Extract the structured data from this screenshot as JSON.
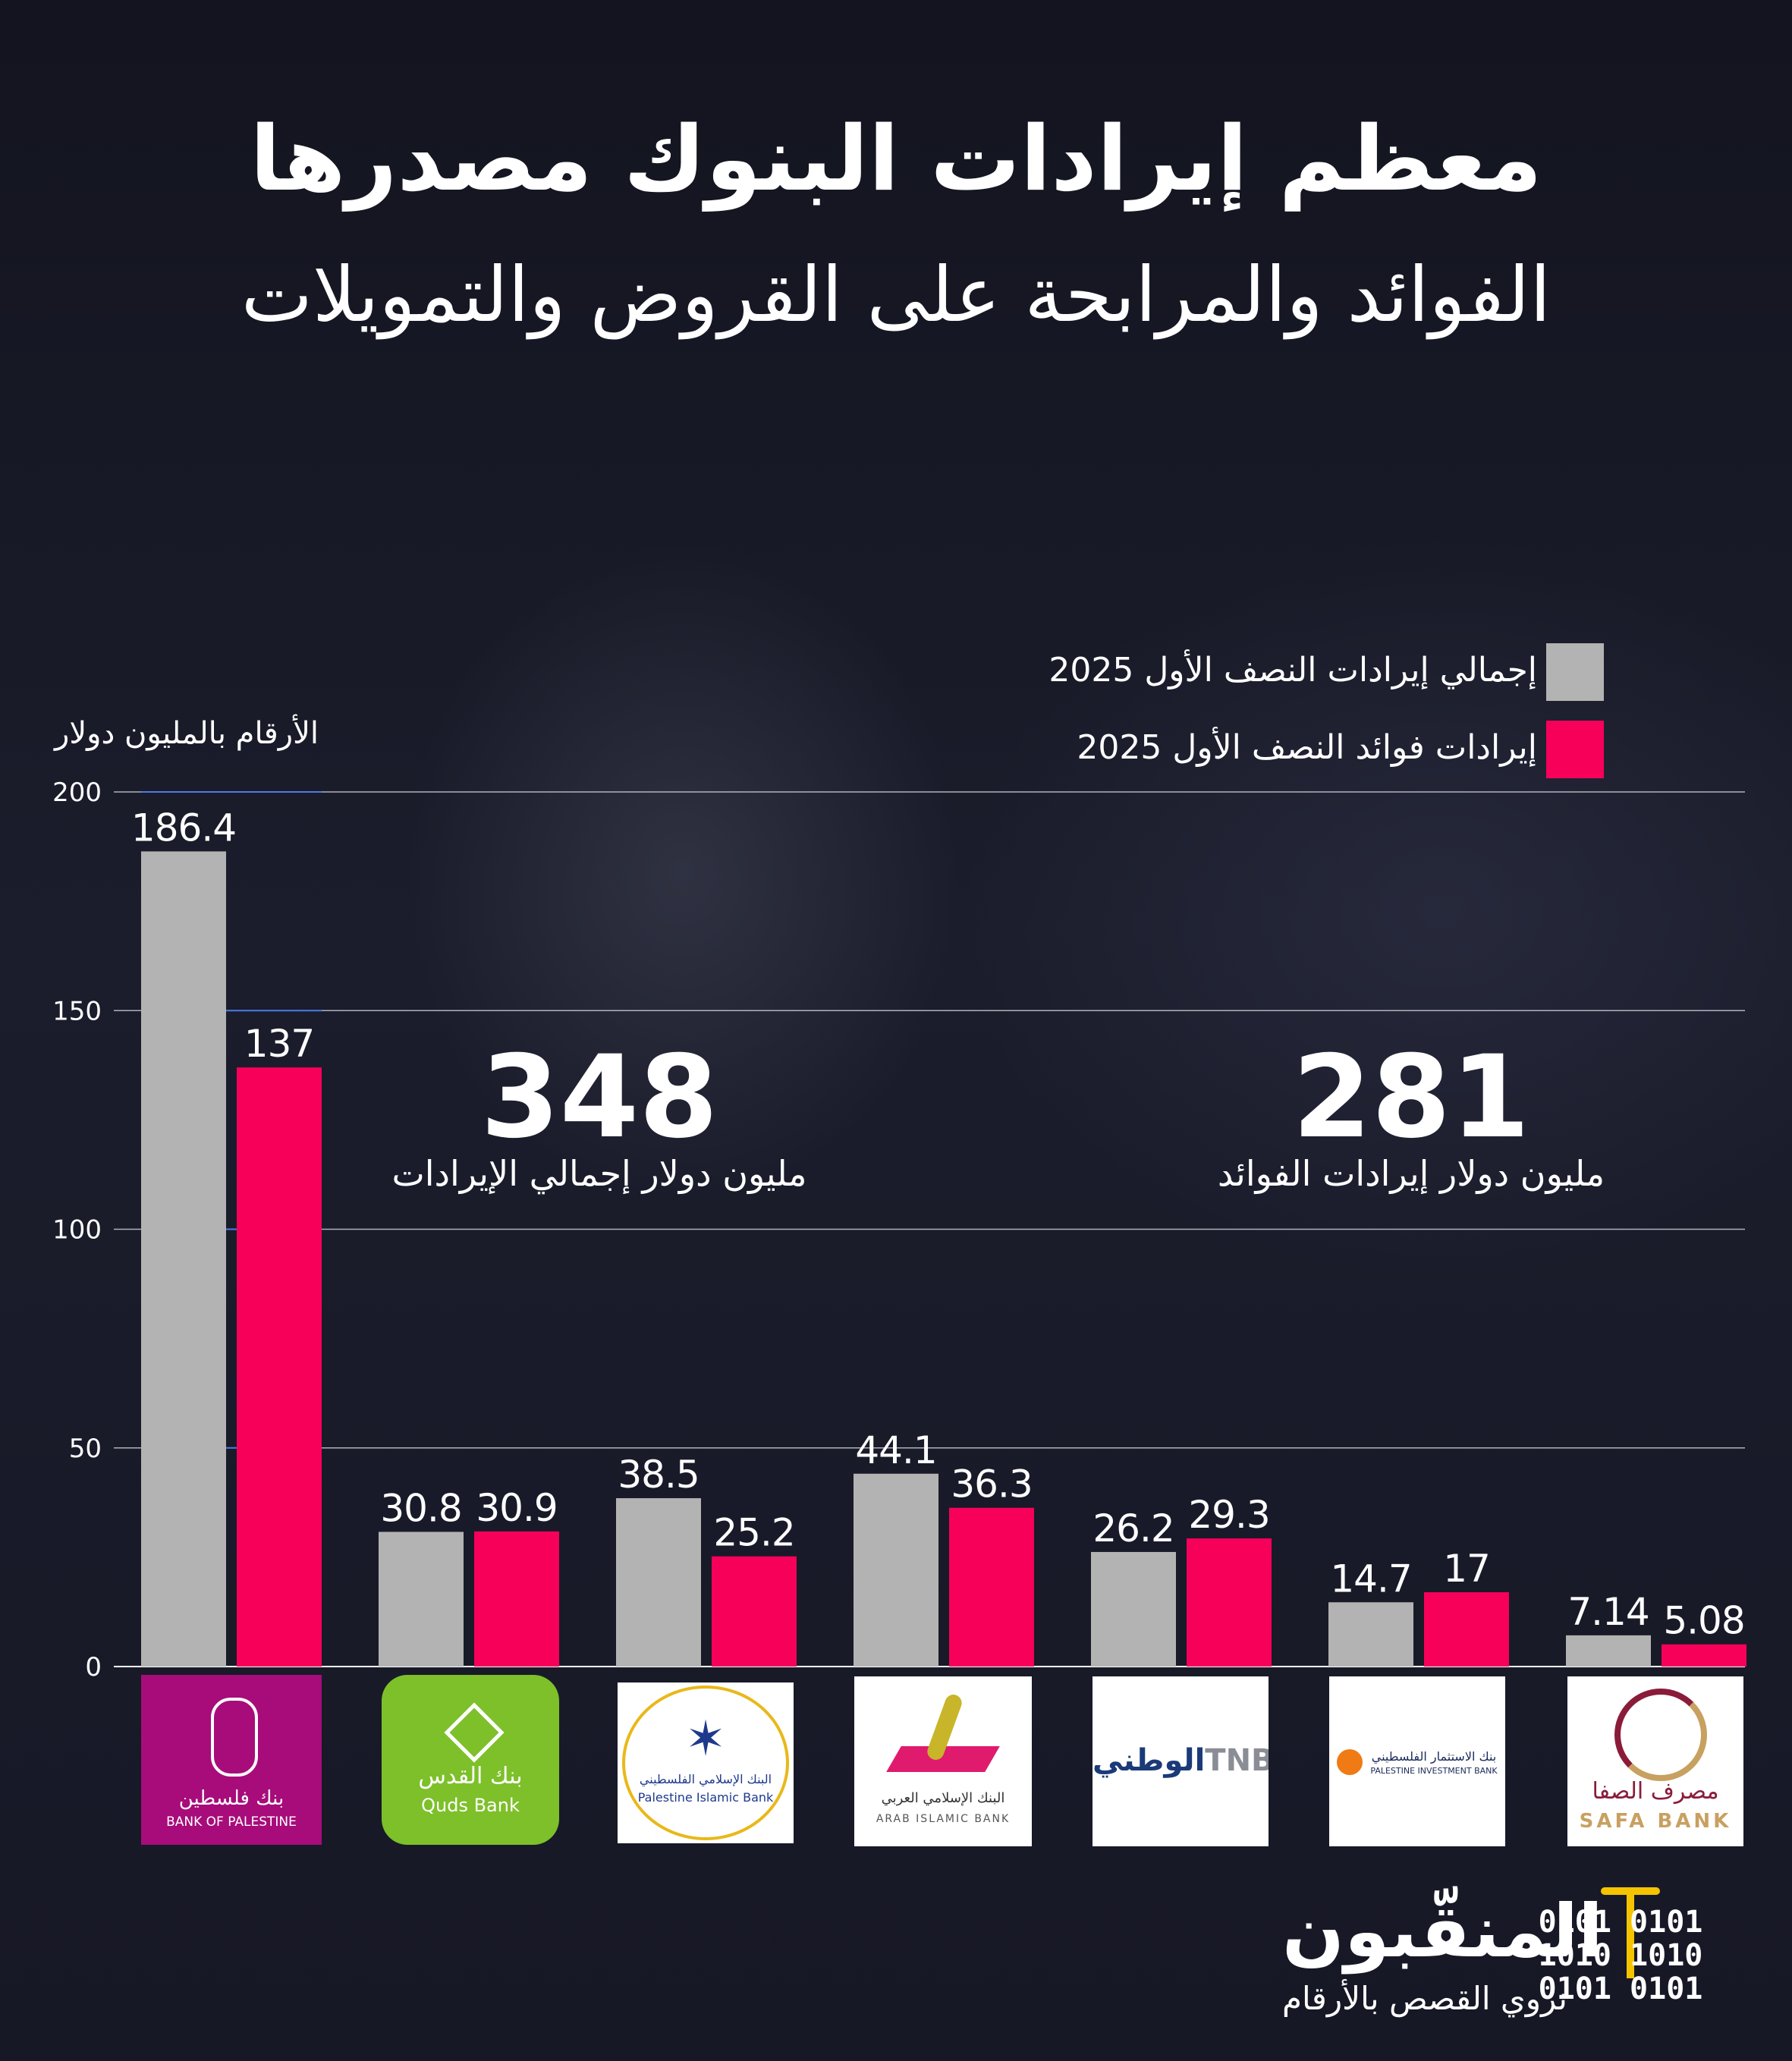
{
  "title": "معظم إيرادات البنوك مصدرها",
  "subtitle": "الفوائد والمرابحة على القروض والتمويلات",
  "unit_note": "الأرقام بالمليون دولار",
  "totals": [
    {
      "value": "348",
      "caption": "مليون دولار  إجمالي الإيرادات"
    },
    {
      "value": "281",
      "caption": "مليون دولار  إيرادات الفوائد"
    }
  ],
  "banks": [
    {
      "name_ar": "بنك فلسطين",
      "name_en": "BANK OF PALESTINE"
    },
    {
      "name_ar": "بنك القدس",
      "name_en": "Quds Bank"
    },
    {
      "name_ar": "البنك الإسلامي الفلسطيني",
      "name_en": "Palestine Islamic Bank"
    },
    {
      "name_ar": "البنك الإسلامي العربي",
      "name_en": "ARAB ISLAMIC BANK"
    },
    {
      "name_ar": "الوطني",
      "name_en": "TNB"
    },
    {
      "name_ar": "بنك الاستثمار الفلسطيني",
      "name_en": "PALESTINE INVESTMENT BANK"
    },
    {
      "name_ar": "مصرف الصفا",
      "name_en": "SAFA BANK"
    }
  ],
  "brand": {
    "name": "المنقّبون",
    "tagline": "نروي القصص بالأرقام",
    "binary": "0101 0101\n1010 1010\n0101 0101"
  },
  "colors": {
    "total": "#b3b3b3",
    "interest": "#f6005a",
    "background": "#161826",
    "gridline": "#c9ccd6",
    "bank_of_palestine": "#a70c7a",
    "quds_bank": "#7dc02a",
    "brand_yellow": "#f5c400"
  },
  "chart_data": {
    "type": "bar",
    "categories": [
      "بنك فلسطين",
      "بنك القدس",
      "البنك الإسلامي الفلسطيني",
      "البنك الإسلامي العربي",
      "الوطني",
      "بنك الاستثمار الفلسطيني",
      "مصرف الصفا"
    ],
    "series": [
      {
        "name": "إجمالي إيرادات النصف الأول 2025",
        "values": [
          186.4,
          30.8,
          38.5,
          44.1,
          26.2,
          14.7,
          7.14
        ],
        "labels": [
          "186.4",
          "30.8",
          "38.5",
          "44.1",
          "26.2",
          "14.7",
          "7.14"
        ]
      },
      {
        "name": "إيرادات فوائد النصف الأول 2025",
        "values": [
          137,
          30.9,
          25.2,
          36.3,
          29.3,
          17,
          5.08
        ],
        "labels": [
          "137",
          "30.9",
          "25.2",
          "36.3",
          "29.3",
          "17",
          "5.08"
        ]
      }
    ],
    "ylim": [
      0,
      200
    ],
    "yticks": [
      "0",
      "50",
      "100",
      "150",
      "200"
    ],
    "grid": true,
    "legend_position": "top-right"
  }
}
